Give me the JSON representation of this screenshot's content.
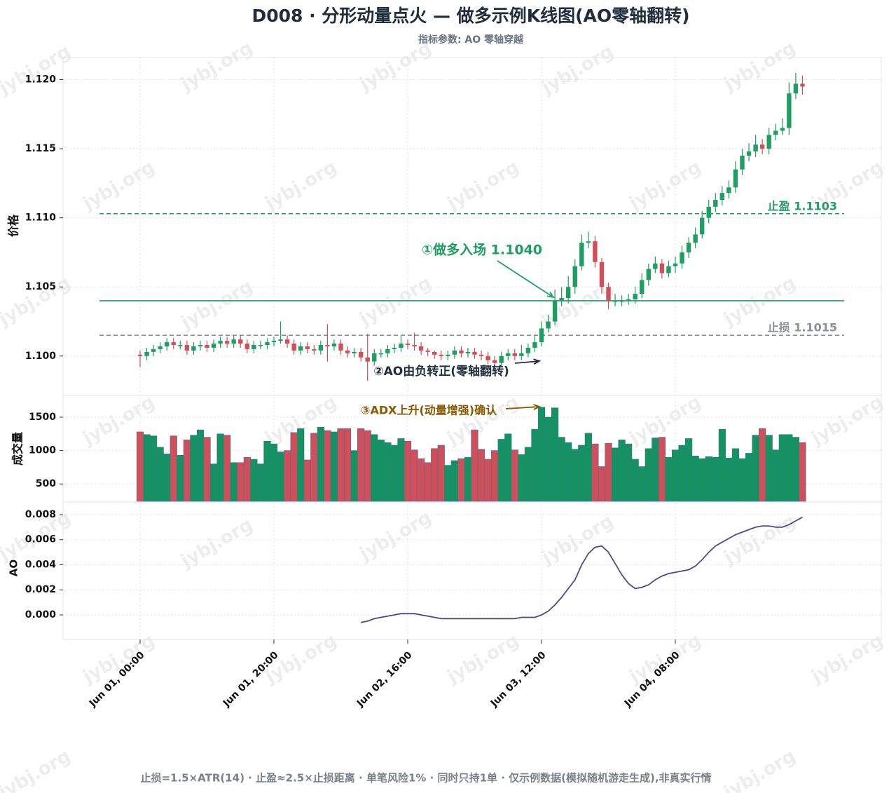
{
  "chart_data": {
    "type": "candlestick",
    "title": "D008 · 分形动量点火 — 做多示例K线图(AO零轴翻转)",
    "subtitle": "指标参数: AO 零轴穿越",
    "grid": true,
    "x": [
      "Jun 01, 00:00",
      "Jun 01, 01:00",
      "Jun 01, 02:00",
      "Jun 01, 03:00",
      "Jun 01, 04:00",
      "Jun 01, 05:00",
      "Jun 01, 06:00",
      "Jun 01, 07:00",
      "Jun 01, 08:00",
      "Jun 01, 09:00",
      "Jun 01, 10:00",
      "Jun 01, 11:00",
      "Jun 01, 12:00",
      "Jun 01, 13:00",
      "Jun 01, 14:00",
      "Jun 01, 15:00",
      "Jun 01, 16:00",
      "Jun 01, 17:00",
      "Jun 01, 18:00",
      "Jun 01, 19:00",
      "Jun 01, 20:00",
      "Jun 01, 21:00",
      "Jun 01, 22:00",
      "Jun 01, 23:00",
      "Jun 02, 00:00",
      "Jun 02, 01:00",
      "Jun 02, 02:00",
      "Jun 02, 03:00",
      "Jun 02, 04:00",
      "Jun 02, 05:00",
      "Jun 02, 06:00",
      "Jun 02, 07:00",
      "Jun 02, 08:00",
      "Jun 02, 09:00",
      "Jun 02, 10:00",
      "Jun 02, 11:00",
      "Jun 02, 12:00",
      "Jun 02, 13:00",
      "Jun 02, 14:00",
      "Jun 02, 15:00",
      "Jun 02, 16:00",
      "Jun 02, 17:00",
      "Jun 02, 18:00",
      "Jun 02, 19:00",
      "Jun 02, 20:00",
      "Jun 02, 21:00",
      "Jun 02, 22:00",
      "Jun 02, 23:00",
      "Jun 03, 00:00",
      "Jun 03, 01:00",
      "Jun 03, 02:00",
      "Jun 03, 03:00",
      "Jun 03, 04:00",
      "Jun 03, 05:00",
      "Jun 03, 06:00",
      "Jun 03, 07:00",
      "Jun 03, 08:00",
      "Jun 03, 09:00",
      "Jun 03, 10:00",
      "Jun 03, 11:00",
      "Jun 03, 12:00",
      "Jun 03, 13:00",
      "Jun 03, 14:00",
      "Jun 03, 15:00",
      "Jun 03, 16:00",
      "Jun 03, 17:00",
      "Jun 03, 18:00",
      "Jun 03, 19:00",
      "Jun 03, 20:00",
      "Jun 03, 21:00",
      "Jun 03, 22:00",
      "Jun 03, 23:00",
      "Jun 04, 00:00",
      "Jun 04, 01:00",
      "Jun 04, 02:00",
      "Jun 04, 03:00",
      "Jun 04, 04:00",
      "Jun 04, 05:00",
      "Jun 04, 06:00",
      "Jun 04, 07:00",
      "Jun 04, 08:00",
      "Jun 04, 09:00",
      "Jun 04, 10:00",
      "Jun 04, 11:00",
      "Jun 04, 12:00",
      "Jun 04, 13:00",
      "Jun 04, 14:00",
      "Jun 04, 15:00",
      "Jun 04, 16:00",
      "Jun 04, 17:00",
      "Jun 04, 18:00",
      "Jun 04, 19:00",
      "Jun 04, 20:00",
      "Jun 04, 21:00",
      "Jun 04, 22:00",
      "Jun 04, 23:00",
      "Jun 05, 00:00",
      "Jun 05, 01:00",
      "Jun 05, 02:00",
      "Jun 05, 03:00"
    ],
    "xticks": [
      "Jun 01, 00:00",
      "Jun 01, 20:00",
      "Jun 02, 16:00",
      "Jun 03, 12:00",
      "Jun 04, 08:00"
    ],
    "ylabel": "价格",
    "ylim": [
      1.0972,
      1.1216
    ],
    "yticks": [
      {
        "value": 1.1,
        "label": "1.100"
      },
      1.105,
      {
        "value": 1.11,
        "label": "1.110"
      },
      1.115,
      {
        "value": 1.12,
        "label": "1.120"
      }
    ],
    "up_color": "#1e9e62",
    "down_color": "#d0505a",
    "open": [
      1.1001,
      1.1,
      1.1003,
      1.1005,
      1.1007,
      1.101,
      1.1008,
      1.1008,
      1.1004,
      1.1007,
      1.1008,
      1.1006,
      1.1009,
      1.1011,
      1.1009,
      1.1012,
      1.1009,
      1.1005,
      1.1008,
      1.1008,
      1.101,
      1.1011,
      1.1012,
      1.1009,
      1.1004,
      1.1007,
      1.1005,
      1.1004,
      1.1008,
      1.1007,
      1.1009,
      1.1004,
      1.1002,
      1.1003,
      1.0999,
      1.0996,
      1.1002,
      1.1002,
      1.1005,
      1.1006,
      1.1009,
      1.1008,
      1.1007,
      1.1004,
      1.1003,
      1.1001,
      1.1,
      1.1001,
      1.1004,
      1.1002,
      1.1003,
      1.1001,
      1.1,
      1.0997,
      1.0995,
      1.1,
      1.1002,
      1.1,
      1.1002,
      1.1006,
      1.101,
      1.102,
      1.1025,
      1.104,
      1.1042,
      1.105,
      1.1065,
      1.1082,
      1.1083,
      1.1068,
      1.105,
      1.104,
      1.104,
      1.104,
      1.1041,
      1.1045,
      1.1055,
      1.1063,
      1.1067,
      1.106,
      1.1065,
      1.1067,
      1.1075,
      1.1082,
      1.1088,
      1.11,
      1.1108,
      1.1113,
      1.1118,
      1.1122,
      1.1135,
      1.1145,
      1.1148,
      1.1153,
      1.115,
      1.116,
      1.1163,
      1.1165,
      1.119,
      1.1197
    ],
    "high": [
      1.1004,
      1.1006,
      1.1008,
      1.101,
      1.1013,
      1.1013,
      1.1011,
      1.1011,
      1.101,
      1.1011,
      1.1011,
      1.1012,
      1.1014,
      1.1014,
      1.1015,
      1.1015,
      1.1012,
      1.1011,
      1.1011,
      1.1013,
      1.1014,
      1.1025,
      1.1015,
      1.1012,
      1.101,
      1.101,
      1.1008,
      1.1011,
      1.1023,
      1.1012,
      1.1012,
      1.1007,
      1.1006,
      1.1006,
      1.1016,
      1.1005,
      1.1005,
      1.1008,
      1.1009,
      1.1015,
      1.1012,
      1.1017,
      1.101,
      1.1006,
      1.1004,
      1.1004,
      1.1004,
      1.1007,
      1.1007,
      1.1006,
      1.1006,
      1.1004,
      1.1003,
      1.1,
      1.1003,
      1.1005,
      1.1005,
      1.1008,
      1.1009,
      1.1015,
      1.1025,
      1.103,
      1.1048,
      1.105,
      1.1058,
      1.107,
      1.1088,
      1.109,
      1.1087,
      1.1071,
      1.1053,
      1.1045,
      1.1044,
      1.1045,
      1.105,
      1.106,
      1.1067,
      1.1072,
      1.107,
      1.1069,
      1.1072,
      1.108,
      1.1086,
      1.1093,
      1.1105,
      1.1113,
      1.1118,
      1.1123,
      1.1127,
      1.1141,
      1.115,
      1.1154,
      1.116,
      1.1157,
      1.1165,
      1.1168,
      1.1172,
      1.1198,
      1.1205,
      1.1203
    ],
    "low": [
      1.0992,
      1.0997,
      1.1,
      1.1002,
      1.1004,
      1.1005,
      1.1005,
      1.1001,
      1.1001,
      1.1004,
      1.1003,
      1.1003,
      1.1006,
      1.1006,
      1.1006,
      1.1006,
      1.1002,
      1.1002,
      1.1005,
      1.1005,
      1.1007,
      1.1009,
      1.1006,
      1.1001,
      1.1001,
      1.1002,
      1.1001,
      1.1001,
      1.0996,
      1.1004,
      1.1001,
      1.0999,
      1.0999,
      1.0996,
      1.0982,
      1.0993,
      1.0999,
      1.0999,
      1.1002,
      1.1003,
      1.1005,
      1.1004,
      1.1001,
      1.1,
      1.0998,
      1.0997,
      1.0997,
      1.0998,
      1.0999,
      1.0999,
      1.0998,
      1.0997,
      1.0994,
      1.0992,
      1.0992,
      1.0997,
      1.0997,
      1.0997,
      1.0999,
      1.1003,
      1.1007,
      1.1017,
      1.1022,
      1.1036,
      1.1038,
      1.1045,
      1.1062,
      1.1078,
      1.1064,
      1.1045,
      1.1034,
      1.1036,
      1.1036,
      1.1037,
      1.1038,
      1.1042,
      1.1051,
      1.106,
      1.1056,
      1.1057,
      1.106,
      1.1063,
      1.1071,
      1.1078,
      1.1085,
      1.1096,
      1.1104,
      1.1109,
      1.1114,
      1.1118,
      1.1131,
      1.1141,
      1.1144,
      1.1146,
      1.1146,
      1.1156,
      1.116,
      1.116,
      1.1186,
      1.1189
    ],
    "close": [
      1.1,
      1.1003,
      1.1005,
      1.1007,
      1.101,
      1.1008,
      1.1008,
      1.1004,
      1.1007,
      1.1008,
      1.1006,
      1.1009,
      1.1011,
      1.1009,
      1.1012,
      1.1009,
      1.1005,
      1.1008,
      1.1008,
      1.101,
      1.1011,
      1.1012,
      1.1009,
      1.1004,
      1.1007,
      1.1005,
      1.1004,
      1.1008,
      1.1007,
      1.1009,
      1.1004,
      1.1002,
      1.1003,
      1.0999,
      1.0996,
      1.1002,
      1.1002,
      1.1005,
      1.1006,
      1.1009,
      1.1008,
      1.1007,
      1.1004,
      1.1003,
      1.1001,
      1.1,
      1.1001,
      1.1004,
      1.1002,
      1.1003,
      1.1001,
      1.1,
      1.0997,
      1.0995,
      1.1,
      1.1002,
      1.1,
      1.1002,
      1.1006,
      1.101,
      1.102,
      1.1025,
      1.104,
      1.1042,
      1.105,
      1.1065,
      1.1082,
      1.1083,
      1.1068,
      1.105,
      1.104,
      1.104,
      1.104,
      1.1041,
      1.1045,
      1.1055,
      1.1063,
      1.1067,
      1.106,
      1.1065,
      1.1067,
      1.1075,
      1.1082,
      1.1088,
      1.11,
      1.1108,
      1.1113,
      1.1118,
      1.1122,
      1.1135,
      1.1145,
      1.1148,
      1.1153,
      1.115,
      1.116,
      1.1163,
      1.1165,
      1.119,
      1.1197,
      1.1195
    ],
    "lines": [
      {
        "value": 1.1103,
        "label": "止盈 1.1103",
        "color": "#1e9e62",
        "style": "dashed"
      },
      {
        "value": 1.104,
        "color": "#1e9e62",
        "style": "solid"
      },
      {
        "value": 1.1015,
        "label": "止损 1.1015",
        "color": "#8a8f98",
        "style": "dashed"
      }
    ],
    "annotations": [
      {
        "text": "①做多入场 1.1040",
        "color": "#1e9e62"
      },
      {
        "text": "②AO由负转正(零轴翻转)",
        "color": "#1f2d3d"
      },
      {
        "text": "③ADX上升(动量增强)确认",
        "color": "#8a5a00"
      }
    ],
    "volume": {
      "ylabel": "成交量",
      "ylim": [
        240,
        1815
      ],
      "yticks": [
        500,
        1000,
        1500
      ],
      "values": [
        1280,
        1240,
        1220,
        1050,
        950,
        1220,
        930,
        1160,
        1230,
        1310,
        1200,
        800,
        1250,
        1230,
        820,
        820,
        900,
        870,
        800,
        1140,
        1100,
        980,
        1000,
        1270,
        1330,
        860,
        1260,
        1350,
        1300,
        1280,
        1330,
        1330,
        1000,
        1330,
        1300,
        1240,
        1160,
        1120,
        1080,
        1180,
        1140,
        1010,
        880,
        820,
        1030,
        1080,
        780,
        850,
        880,
        900,
        1310,
        1020,
        870,
        1000,
        1170,
        1250,
        1010,
        940,
        1050,
        1320,
        1650,
        1500,
        1640,
        1200,
        1120,
        1020,
        1080,
        1260,
        1100,
        760,
        1110,
        1040,
        1160,
        1100,
        870,
        760,
        1030,
        1190,
        1200,
        900,
        1010,
        1080,
        1180,
        920,
        880,
        910,
        900,
        1320,
        890,
        1030,
        880,
        960,
        1230,
        1330,
        1230,
        1010,
        1240,
        1240,
        1200,
        1120
      ]
    },
    "ao": {
      "ylabel": "AO",
      "color": "#4b4a8f",
      "ylim": [
        -0.00196,
        0.00895
      ],
      "yticks": [
        {
          "value": 0,
          "label": "0.000"
        },
        0.002,
        0.004,
        0.006,
        0.008
      ],
      "values": [
        null,
        null,
        null,
        null,
        null,
        null,
        null,
        null,
        null,
        null,
        null,
        null,
        null,
        null,
        null,
        null,
        null,
        null,
        null,
        null,
        null,
        null,
        null,
        null,
        null,
        null,
        null,
        null,
        null,
        null,
        null,
        null,
        null,
        -0.0006,
        -0.0005,
        -0.0003,
        -0.0002,
        -0.0001,
        0.0,
        0.0001,
        0.0001,
        0.0001,
        0.0,
        -0.0001,
        -0.0002,
        -0.0003,
        -0.0003,
        -0.0003,
        -0.0003,
        -0.0003,
        -0.0003,
        -0.0003,
        -0.0003,
        -0.0003,
        -0.0003,
        -0.0003,
        -0.0003,
        -0.0002,
        -0.0002,
        -0.0002,
        0.0,
        0.0003,
        0.0008,
        0.0014,
        0.0021,
        0.0028,
        0.004,
        0.0049,
        0.0054,
        0.0055,
        0.005,
        0.0041,
        0.0032,
        0.0025,
        0.0021,
        0.0022,
        0.0024,
        0.0028,
        0.0031,
        0.0033,
        0.0034,
        0.0035,
        0.0036,
        0.0039,
        0.0044,
        0.005,
        0.0055,
        0.0058,
        0.0061,
        0.0064,
        0.0066,
        0.0068,
        0.007,
        0.0071,
        0.0071,
        0.007,
        0.007,
        0.0072,
        0.0075,
        0.0078
      ]
    },
    "footer": "止损=1.5×ATR(14) · 止盈≈2.5×止损距离 · 单笔风险1% · 同时只持1单 · 仅示例数据(模拟随机游走生成),非真实行情",
    "watermark": "jybj.org"
  }
}
